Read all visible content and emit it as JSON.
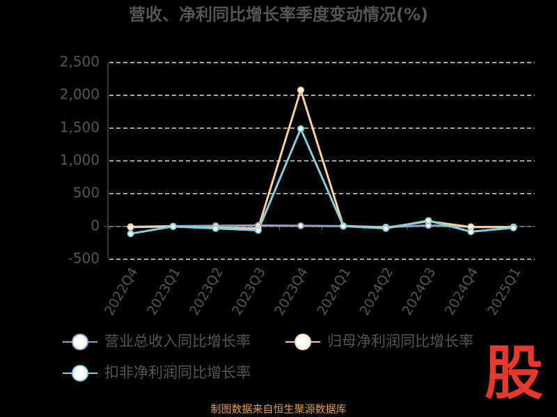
{
  "chart_data": {
    "type": "line",
    "title": "营收、净利同比增长率季度变动情况(%)",
    "categories": [
      "2022Q4",
      "2023Q1",
      "2023Q2",
      "2023Q3",
      "2023Q4",
      "2024Q1",
      "2024Q2",
      "2024Q3",
      "2024Q4",
      "2025Q1"
    ],
    "series": [
      {
        "name": "营业总收入同比增长率",
        "color": "#8fa3cf",
        "values": [
          -5,
          5,
          10,
          15,
          10,
          5,
          -10,
          15,
          -5,
          -10
        ]
      },
      {
        "name": "归母净利润同比增长率",
        "color": "#ffd08f",
        "values": [
          -10,
          0,
          -20,
          -30,
          2080,
          10,
          -20,
          80,
          -10,
          -10
        ]
      },
      {
        "name": "扣非净利润同比增长率",
        "color": "#7fd3da",
        "values": [
          -110,
          0,
          -30,
          -60,
          1490,
          5,
          -30,
          90,
          -80,
          -20
        ]
      }
    ],
    "ylim": [
      -500,
      2500
    ],
    "yticks": [
      -500,
      0,
      500,
      {
        "value": 1000,
        "label": "1,000"
      },
      {
        "value": 1500,
        "label": "1,500"
      },
      {
        "value": 2000,
        "label": "2,000"
      },
      {
        "value": 2500,
        "label": "2,500"
      }
    ],
    "grid": true,
    "legend": "bottom",
    "source": "制图数据来自恒生聚源数据库",
    "watermark": "股"
  }
}
